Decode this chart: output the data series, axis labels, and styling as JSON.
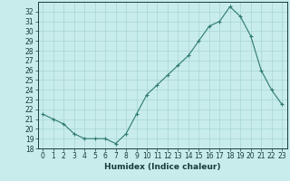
{
  "x": [
    0,
    1,
    2,
    3,
    4,
    5,
    6,
    7,
    8,
    9,
    10,
    11,
    12,
    13,
    14,
    15,
    16,
    17,
    18,
    19,
    20,
    21,
    22,
    23
  ],
  "y": [
    21.5,
    21.0,
    20.5,
    19.5,
    19.0,
    19.0,
    19.0,
    18.5,
    19.5,
    21.5,
    23.5,
    24.5,
    25.5,
    26.5,
    27.5,
    29.0,
    30.5,
    31.0,
    32.5,
    31.5,
    29.5,
    26.0,
    24.0,
    22.5
  ],
  "line_color": "#2d7a70",
  "marker": "+",
  "bg_color": "#c8ecec",
  "grid_color": "#a8d4d4",
  "xlabel": "Humidex (Indice chaleur)",
  "ylim": [
    18,
    33
  ],
  "xlim": [
    -0.5,
    23.5
  ],
  "yticks": [
    18,
    19,
    20,
    21,
    22,
    23,
    24,
    25,
    26,
    27,
    28,
    29,
    30,
    31,
    32
  ],
  "xticks": [
    0,
    1,
    2,
    3,
    4,
    5,
    6,
    7,
    8,
    9,
    10,
    11,
    12,
    13,
    14,
    15,
    16,
    17,
    18,
    19,
    20,
    21,
    22,
    23
  ],
  "font_color": "#1a3a3a",
  "label_fontsize": 6.5,
  "tick_fontsize": 5.5
}
